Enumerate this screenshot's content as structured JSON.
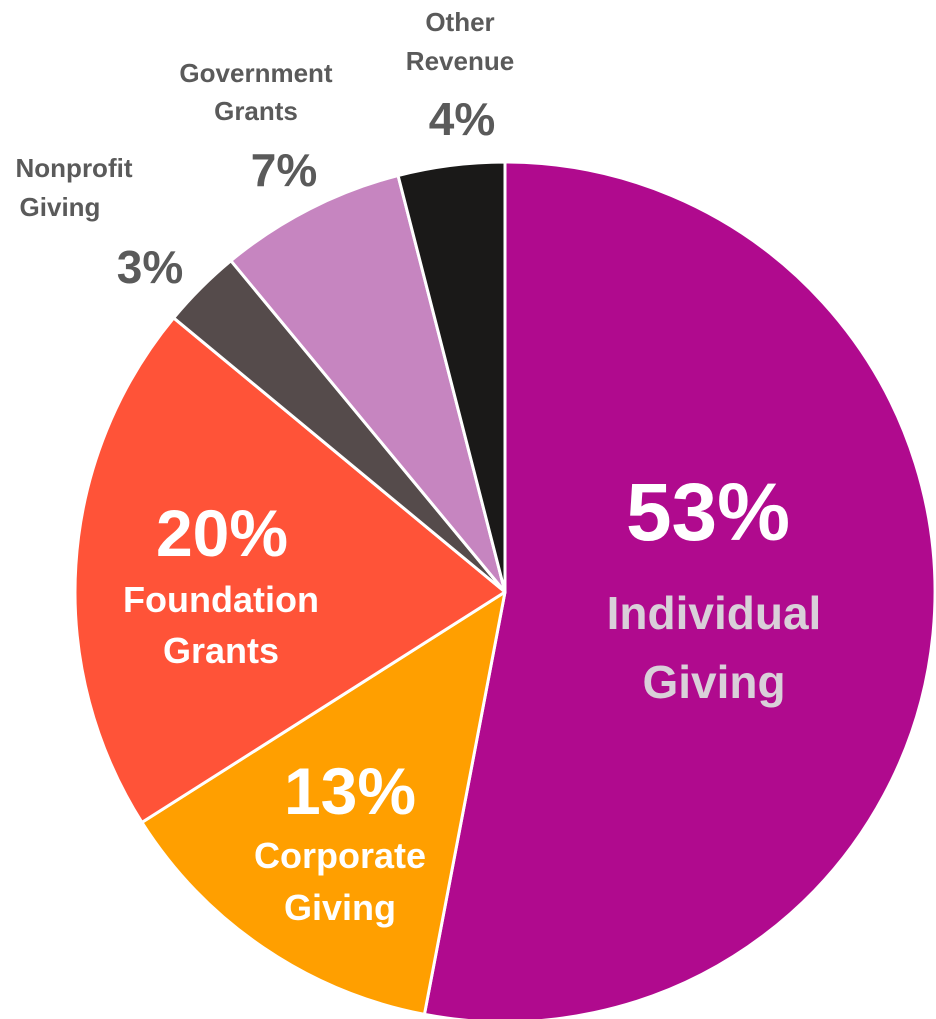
{
  "chart_data": {
    "type": "pie",
    "title": "",
    "start_angle_deg": 0,
    "direction": "clockwise",
    "slices": [
      {
        "label_lines": [
          "Individual",
          "Giving"
        ],
        "value": 53,
        "value_label": "53%",
        "color": "#b00a8e",
        "label_position": "inside"
      },
      {
        "label_lines": [
          "Corporate",
          "Giving"
        ],
        "value": 13,
        "value_label": "13%",
        "color": "#ff9f00",
        "label_position": "inside"
      },
      {
        "label_lines": [
          "Foundation",
          "Grants"
        ],
        "value": 20,
        "value_label": "20%",
        "color": "#ff5338",
        "label_position": "inside"
      },
      {
        "label_lines": [
          "Nonprofit",
          "Giving"
        ],
        "value": 3,
        "value_label": "3%",
        "color": "#554b4b",
        "label_position": "outside"
      },
      {
        "label_lines": [
          "Government",
          "Grants"
        ],
        "value": 7,
        "value_label": "7%",
        "color": "#c685c0",
        "label_position": "outside"
      },
      {
        "label_lines": [
          "Other",
          "Revenue"
        ],
        "value": 4,
        "value_label": "4%",
        "color": "#1a1918",
        "label_position": "outside"
      }
    ]
  }
}
